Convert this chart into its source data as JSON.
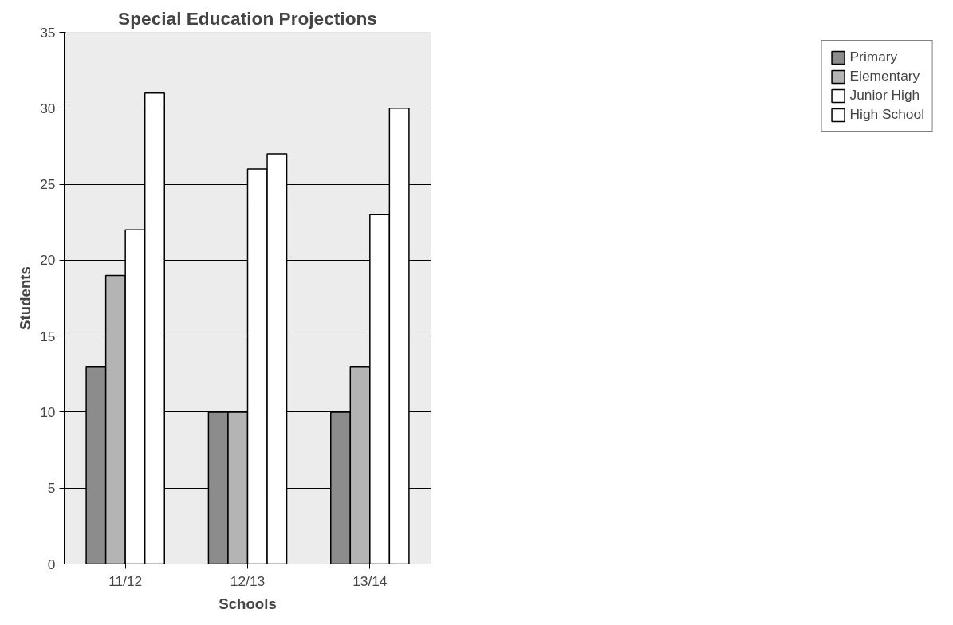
{
  "chart_data": {
    "type": "bar",
    "title": "Special Education Projections",
    "xlabel": "Schools",
    "ylabel": "Students",
    "categories": [
      "11/12",
      "12/13",
      "13/14"
    ],
    "series": [
      {
        "name": "Primary",
        "color": "#8c8c8c",
        "values": [
          13,
          10,
          10
        ]
      },
      {
        "name": "Elementary",
        "color": "#b4b4b4",
        "values": [
          19,
          10,
          13
        ]
      },
      {
        "name": "Junior High",
        "color": "#ffffff",
        "values": [
          22,
          26,
          23
        ]
      },
      {
        "name": "High School",
        "color": "#ffffff",
        "values": [
          31,
          27,
          30
        ]
      }
    ],
    "ylim": [
      0,
      35
    ],
    "yticks": [
      0,
      5,
      10,
      15,
      20,
      25,
      30,
      35
    ],
    "grid": "y",
    "legend": "right"
  }
}
